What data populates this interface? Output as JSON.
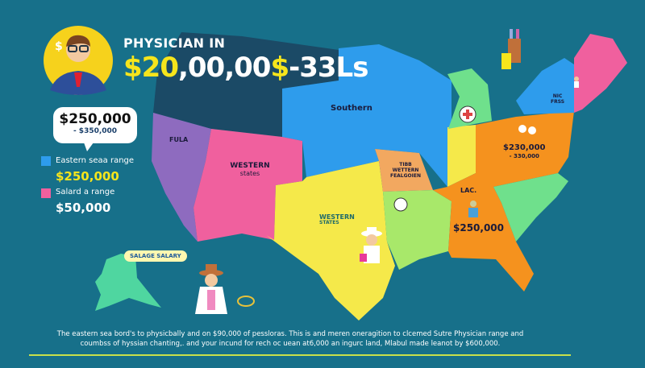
{
  "header": {
    "title_line1": "PHYSICIAN IN",
    "title_line2_yellow_a": "$20",
    "title_line2_white": ",00,00",
    "title_line2_yellow_b": "$",
    "title_line2_end": "-33Ls"
  },
  "callout": {
    "amount": "$250,000",
    "range": "- $350,000"
  },
  "legend": [
    {
      "label": "Eastern seaa range",
      "value": "$250,000",
      "color": "#2e9cec"
    },
    {
      "label": "Salard a range",
      "value": "$50,000",
      "color": "#f0609e"
    }
  ],
  "map_labels": {
    "fula": "FULA",
    "western_states_1": "WESTERN",
    "western_states_1b": "states",
    "southern": "Southern",
    "tibb": "TIBB",
    "wetern": "WETTERN",
    "fealgoien": "FEALGOIEN",
    "western_states_2": "WESTERN",
    "western_states_2b": "STATES",
    "lac": "LAC.",
    "lac_value": "$250,000",
    "east_value": "$230,000",
    "east_range": "- 330,000",
    "nic": "NIC",
    "fress": "FRSS"
  },
  "alaska_bubble": "SALAGE SALARY",
  "footer": {
    "line1": "The eastern sea bord's to physicbally and on $90,000 of pessloras. This is and meren oneragition to clcemed Sutre Physician range and",
    "line2": "coumbss of hyssian chanting,. and your incund for rech oc uean at6,000 an ingurc land, Mlabul made leanot by $600,000."
  },
  "colors": {
    "background": "#17708a",
    "northwest": "#1b4a66",
    "north_central": "#2e9cec",
    "west_coast": "#8e6bbf",
    "western": "#f0609e",
    "south": "#f5e94a",
    "southeast": "#f5921e",
    "gulf": "#a8e86a",
    "carolinas": "#6fe08c",
    "alaska": "#4fd6a0",
    "accent_yellow": "#f6e51c"
  }
}
